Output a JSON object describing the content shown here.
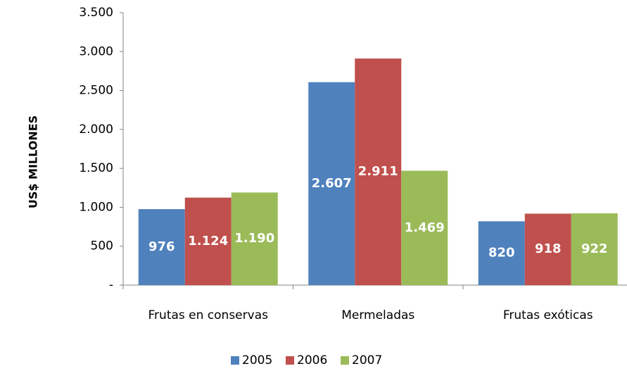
{
  "chart_data": {
    "type": "bar",
    "y_axis_label": "US$ MILLONES",
    "categories": [
      "Frutas en conservas",
      "Mermeladas",
      "Frutas exóticas"
    ],
    "series": [
      {
        "name": "2005",
        "color": "#4f81bd",
        "values": [
          976,
          2607,
          820
        ],
        "value_labels": [
          "976",
          "2.607",
          "820"
        ]
      },
      {
        "name": "2006",
        "color": "#c0504d",
        "values": [
          1124,
          2911,
          918
        ],
        "value_labels": [
          "1.124",
          "2.911",
          "918"
        ]
      },
      {
        "name": "2007",
        "color": "#9bbb59",
        "values": [
          1190,
          1469,
          922
        ],
        "value_labels": [
          "1.190",
          "1.469",
          "922"
        ]
      }
    ],
    "ylim": [
      0,
      3500
    ],
    "yticks": [
      {
        "value": 0,
        "label": "-"
      },
      500,
      {
        "value": 1000,
        "label": "1.000"
      },
      {
        "value": 1500,
        "label": "1.500"
      },
      {
        "value": 2000,
        "label": "2.000"
      },
      {
        "value": 2500,
        "label": "2.500"
      },
      {
        "value": 3000,
        "label": "3.000"
      },
      {
        "value": 3500,
        "label": "3.500"
      }
    ],
    "legend": "bottom",
    "grid": false
  }
}
